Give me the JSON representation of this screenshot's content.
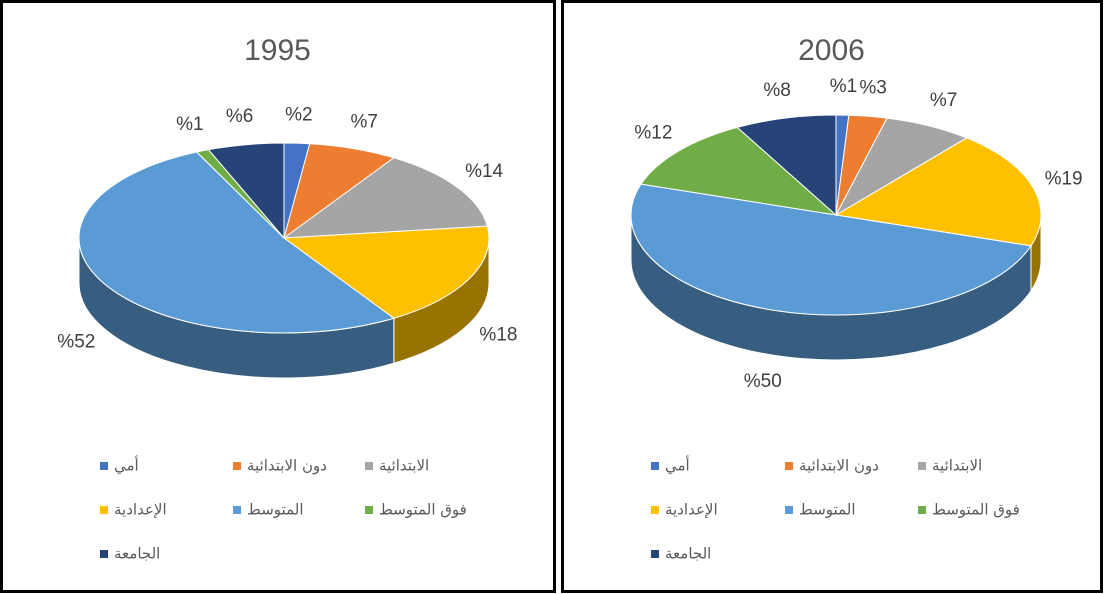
{
  "chart_data": [
    {
      "type": "pie",
      "title": "1995",
      "categories": [
        "أمي",
        "دون الابتدائية",
        "الابتدائية",
        "الإعدادية",
        "المتوسط",
        "فوق المتوسط",
        "الجامعة"
      ],
      "values": [
        2,
        7,
        14,
        18,
        52,
        1,
        6
      ],
      "value_labels": [
        "%2",
        "%7",
        "%14",
        "%18",
        "%52",
        "%1",
        "%6"
      ],
      "colors": [
        "#4472c4",
        "#ed7d31",
        "#a5a5a5",
        "#ffc000",
        "#5b9bd5",
        "#70ad47",
        "#264478"
      ],
      "legend": "bottom"
    },
    {
      "type": "pie",
      "title": "2006",
      "categories": [
        "أمي",
        "دون الابتدائية",
        "الابتدائية",
        "الإعدادية",
        "المتوسط",
        "فوق المتوسط",
        "الجامعة"
      ],
      "values": [
        1,
        3,
        7,
        19,
        50,
        12,
        8
      ],
      "value_labels": [
        "%1",
        "%3",
        "%7",
        "%19",
        "%50",
        "%12",
        "%8"
      ],
      "colors": [
        "#4472c4",
        "#ed7d31",
        "#a5a5a5",
        "#ffc000",
        "#5b9bd5",
        "#70ad47",
        "#264478"
      ],
      "legend": "bottom"
    }
  ]
}
